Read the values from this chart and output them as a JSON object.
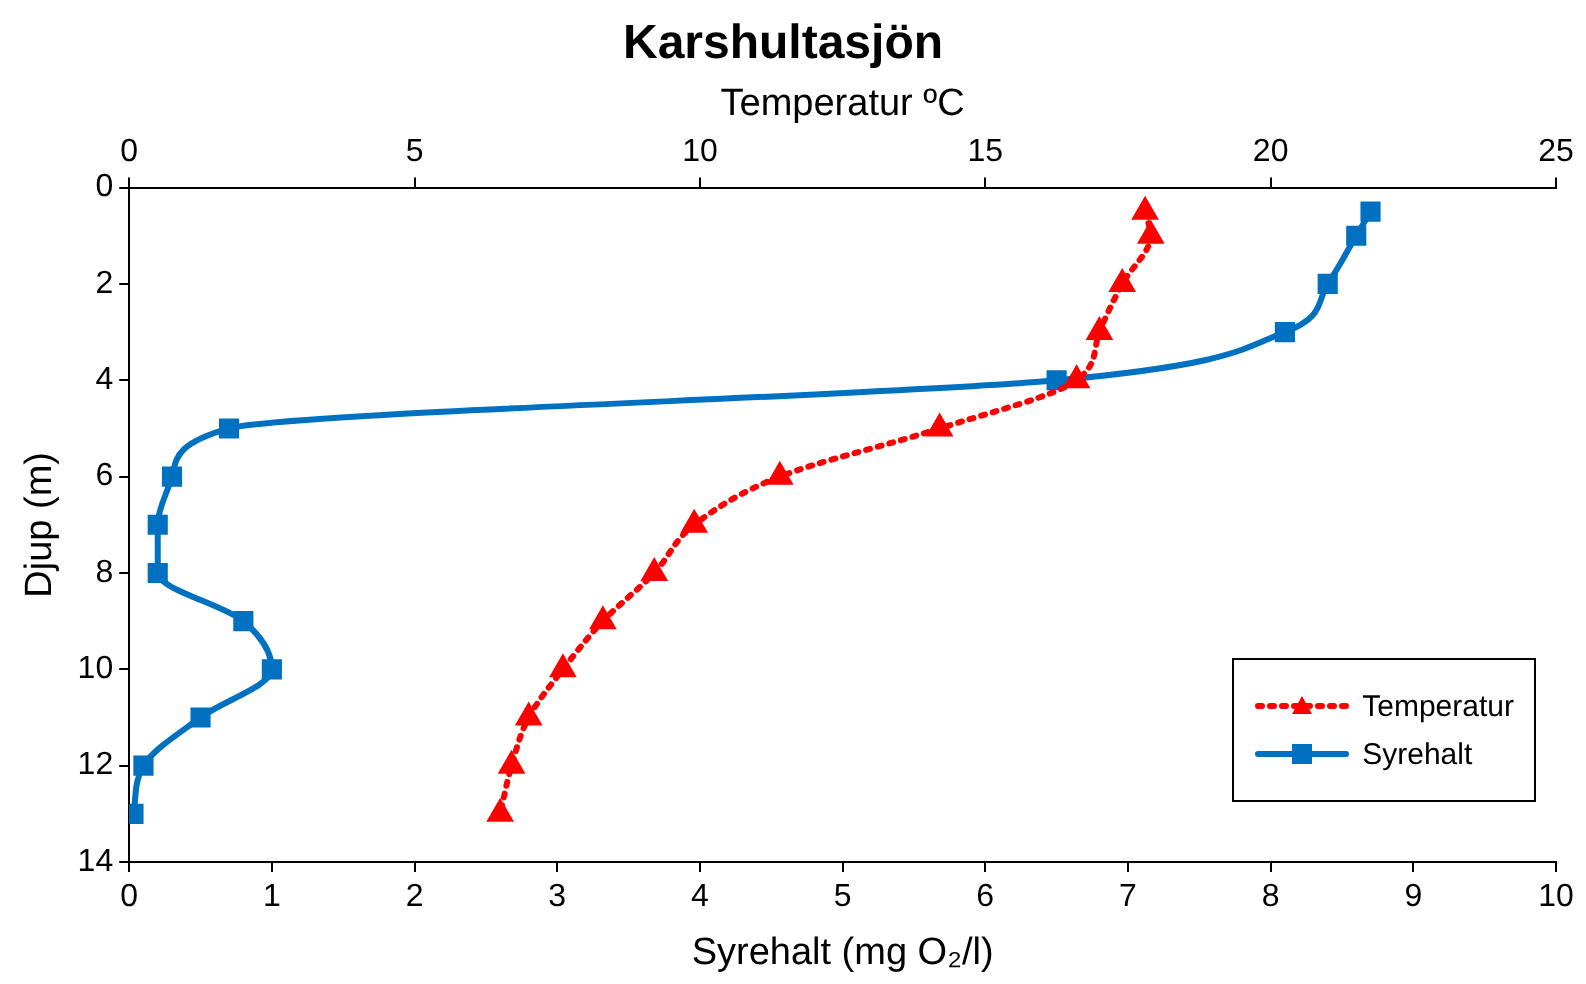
{
  "chart_data": {
    "type": "line",
    "title": "Karshultasjön",
    "xlabel": "Syrehalt (mg O₂/l)",
    "x2label": "Temperatur ºC",
    "ylabel": "Djup (m)",
    "xlim": [
      0,
      10
    ],
    "xticks": [
      0,
      1,
      2,
      3,
      4,
      5,
      6,
      7,
      8,
      9,
      10
    ],
    "x2lim": [
      0,
      25
    ],
    "x2ticks": [
      0,
      5,
      10,
      15,
      20,
      25
    ],
    "ylim": [
      14,
      0
    ],
    "yticks": [
      0,
      2,
      4,
      6,
      8,
      10,
      12,
      14
    ],
    "grid": false,
    "legend": "bottom right",
    "series": [
      {
        "name": "Temperatur",
        "color": "#ff0000",
        "axis": "x2",
        "marker": "triangle",
        "line_style": "dotted",
        "x": [
          17.8,
          17.9,
          17.4,
          17.0,
          16.6,
          14.2,
          11.4,
          9.9,
          9.2,
          8.3,
          7.6,
          7.0,
          6.7,
          6.5
        ],
        "values": [
          0.5,
          1,
          2,
          3,
          4,
          5,
          6,
          7,
          8,
          9,
          10,
          11,
          12,
          13
        ]
      },
      {
        "name": "Syrehalt",
        "color": "#0070c0",
        "marker": "square",
        "line_style": "solid",
        "x": [
          8.7,
          8.6,
          8.4,
          8.1,
          6.5,
          0.7,
          0.3,
          0.2,
          0.2,
          0.8,
          1.0,
          0.5,
          0.1,
          0.03
        ],
        "values": [
          0.5,
          1,
          2,
          3,
          4,
          5,
          6,
          7,
          8,
          9,
          10,
          11,
          12,
          13
        ]
      }
    ]
  }
}
